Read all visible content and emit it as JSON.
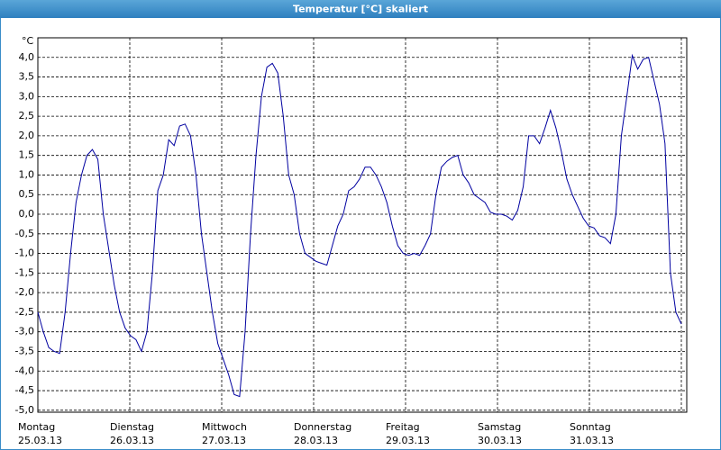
{
  "chart_data": {
    "type": "line",
    "title": "Temperatur [°C] skaliert",
    "y_unit": "°C",
    "days": [
      {
        "name": "Montag",
        "date": "25.03.13"
      },
      {
        "name": "Dienstag",
        "date": "26.03.13"
      },
      {
        "name": "Mittwoch",
        "date": "27.03.13"
      },
      {
        "name": "Donnerstag",
        "date": "28.03.13"
      },
      {
        "name": "Freitag",
        "date": "29.03.13"
      },
      {
        "name": "Samstag",
        "date": "30.03.13"
      },
      {
        "name": "Sonntag",
        "date": "31.03.13"
      }
    ],
    "color": "#0000a0",
    "grid": true,
    "ylim": [
      -5.05,
      4.5
    ],
    "yticks": [
      {
        "value": 4.0,
        "label": "4,0"
      },
      {
        "value": 3.5,
        "label": "3,5"
      },
      {
        "value": 3.0,
        "label": "3,0"
      },
      {
        "value": 2.5,
        "label": "2,5"
      },
      {
        "value": 2.0,
        "label": "2,0"
      },
      {
        "value": 1.5,
        "label": "1,5"
      },
      {
        "value": 1.0,
        "label": "1,0"
      },
      {
        "value": 0.5,
        "label": "0,5"
      },
      {
        "value": 0.0,
        "label": "0,0"
      },
      {
        "value": -0.5,
        "label": "-0,5"
      },
      {
        "value": -1.0,
        "label": "-1,0"
      },
      {
        "value": -1.5,
        "label": "-1,5"
      },
      {
        "value": -2.0,
        "label": "-2,0"
      },
      {
        "value": -2.5,
        "label": "-2,5"
      },
      {
        "value": -3.0,
        "label": "-3,0"
      },
      {
        "value": -3.5,
        "label": "-3,5"
      },
      {
        "value": -4.0,
        "label": "-4,0"
      },
      {
        "value": -4.5,
        "label": "-4,5"
      },
      {
        "value": -5.0,
        "label": "-5,0"
      }
    ],
    "values": [
      -2.5,
      -3.0,
      -3.4,
      -3.5,
      -3.55,
      -2.5,
      -1.0,
      0.3,
      1.0,
      1.5,
      1.65,
      1.4,
      0.0,
      -0.9,
      -1.8,
      -2.5,
      -2.9,
      -3.1,
      -3.2,
      -3.5,
      -3.0,
      -1.5,
      0.6,
      1.0,
      1.9,
      1.75,
      2.25,
      2.3,
      2.0,
      1.0,
      -0.5,
      -1.5,
      -2.5,
      -3.3,
      -3.7,
      -4.1,
      -4.6,
      -4.65,
      -3.0,
      -0.5,
      1.5,
      3.0,
      3.75,
      3.85,
      3.6,
      2.5,
      1.0,
      0.5,
      -0.5,
      -1.0,
      -1.1,
      -1.2,
      -1.25,
      -1.3,
      -0.8,
      -0.3,
      0.0,
      0.6,
      0.7,
      0.9,
      1.2,
      1.2,
      1.0,
      0.7,
      0.3,
      -0.3,
      -0.8,
      -1.0,
      -1.05,
      -1.0,
      -1.05,
      -0.8,
      -0.5,
      0.5,
      1.2,
      1.35,
      1.45,
      1.5,
      1.0,
      0.8,
      0.5,
      0.4,
      0.3,
      0.05,
      0.0,
      0.0,
      -0.05,
      -0.15,
      0.1,
      0.7,
      2.0,
      2.0,
      1.8,
      2.2,
      2.65,
      2.2,
      1.6,
      0.9,
      0.5,
      0.2,
      -0.1,
      -0.3,
      -0.35,
      -0.55,
      -0.6,
      -0.75,
      0.0,
      2.0,
      3.0,
      4.05,
      3.7,
      3.95,
      4.0,
      3.4,
      2.8,
      1.8,
      -1.5,
      -2.5,
      -2.8
    ]
  }
}
